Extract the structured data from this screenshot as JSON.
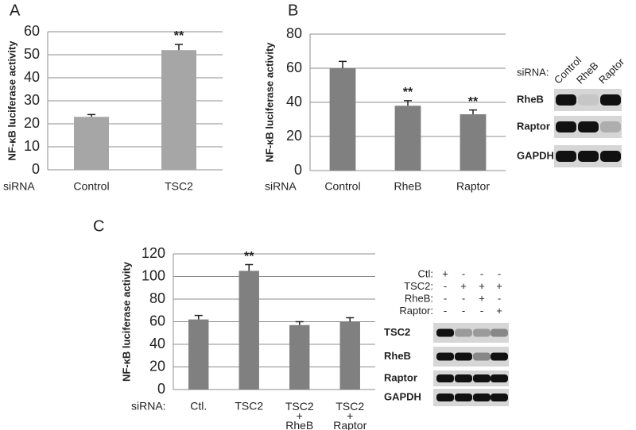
{
  "chart_data": [
    {
      "type": "bar",
      "panel": "A",
      "ylabel": "NF-κB luciferase activity",
      "xlabel": "siRNA",
      "categories": [
        "Control",
        "TSC2"
      ],
      "values": [
        23,
        52
      ],
      "errors": [
        1,
        2.5
      ],
      "annotations": [
        null,
        "**"
      ],
      "color": "#a6a6a6",
      "ylim": [
        0,
        60
      ],
      "yticks": [
        0,
        10,
        20,
        30,
        40,
        50,
        60
      ],
      "grid": true
    },
    {
      "type": "bar",
      "panel": "B",
      "ylabel": "NF-κB luciferase activity",
      "xlabel": "siRNA",
      "categories": [
        "Control",
        "RheB",
        "Raptor"
      ],
      "values": [
        60,
        38,
        33
      ],
      "errors": [
        4,
        3,
        2.5
      ],
      "annotations": [
        null,
        "**",
        "**"
      ],
      "color": "#808080",
      "ylim": [
        0,
        80
      ],
      "yticks": [
        0,
        20,
        40,
        60,
        80
      ],
      "grid": true
    },
    {
      "type": "bar",
      "panel": "C",
      "ylabel": "NF-κB luciferase activity",
      "xlabel": "siRNA:",
      "categories": [
        "Ctl.",
        "TSC2",
        "TSC2 + RheB",
        "TSC2 + Raptor"
      ],
      "values": [
        62,
        105,
        57,
        60
      ],
      "errors": [
        3.5,
        5.5,
        3,
        3.5
      ],
      "annotations": [
        null,
        "**",
        null,
        null
      ],
      "color": "#808080",
      "ylim": [
        0,
        120
      ],
      "yticks": [
        0,
        20,
        40,
        60,
        80,
        100,
        120
      ],
      "grid": true
    }
  ],
  "blots": [
    {
      "header": "siRNA:",
      "lanes": [
        "Control",
        "RheB",
        "Raptor"
      ],
      "rows": [
        "RheB",
        "Raptor",
        "GAPDH"
      ]
    },
    {
      "conditions": [
        {
          "label": "Ctl:",
          "signs": [
            "+",
            "-",
            "-",
            "-"
          ]
        },
        {
          "label": "TSC2:",
          "signs": [
            "-",
            "+",
            "+",
            "+"
          ]
        },
        {
          "label": "RheB:",
          "signs": [
            "-",
            "-",
            "+",
            "-"
          ]
        },
        {
          "label": "Raptor:",
          "signs": [
            "-",
            "-",
            "-",
            "+"
          ]
        }
      ],
      "rows": [
        "TSC2",
        "RheB",
        "Raptor",
        "GAPDH"
      ]
    }
  ]
}
